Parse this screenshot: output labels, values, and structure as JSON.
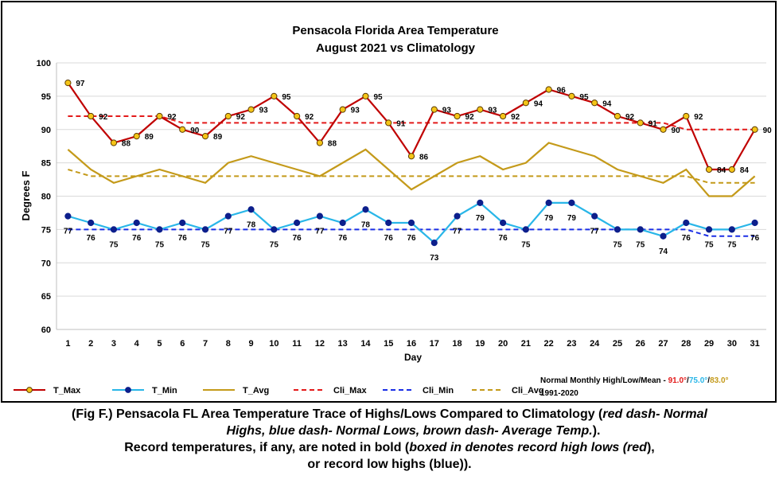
{
  "chart_data": {
    "type": "line",
    "title": "Pensacola Florida Area Temperature",
    "subtitle": "August 2021 vs Climatology",
    "xlabel": "Day",
    "ylabel": "Degrees F",
    "ylim": [
      60,
      100
    ],
    "yticks": [
      60,
      65,
      70,
      75,
      80,
      85,
      90,
      95,
      100
    ],
    "x": [
      1,
      2,
      3,
      4,
      5,
      6,
      7,
      8,
      9,
      10,
      11,
      12,
      13,
      14,
      15,
      16,
      17,
      18,
      19,
      20,
      21,
      22,
      23,
      24,
      25,
      26,
      27,
      28,
      29,
      30,
      31
    ],
    "grid": "horizontal",
    "legend_position": "bottom",
    "series": [
      {
        "name": "T_Max",
        "color": "#c00000",
        "style": "solid-marker",
        "marker_fill": "#f5c518",
        "labels": "above-right",
        "values": [
          97,
          92,
          88,
          89,
          92,
          90,
          89,
          92,
          93,
          95,
          92,
          88,
          93,
          95,
          91,
          86,
          93,
          92,
          93,
          92,
          94,
          96,
          95,
          94,
          92,
          91,
          90,
          92,
          84,
          84,
          90
        ]
      },
      {
        "name": "T_Min",
        "color": "#29b6e8",
        "style": "solid-marker",
        "marker_fill": "#0d1f8c",
        "labels": "below",
        "values": [
          77,
          76,
          75,
          76,
          75,
          76,
          75,
          77,
          78,
          75,
          76,
          77,
          76,
          78,
          76,
          76,
          73,
          77,
          79,
          76,
          75,
          79,
          79,
          77,
          75,
          75,
          74,
          76,
          75,
          75,
          76
        ]
      },
      {
        "name": "T_Avg",
        "color": "#c49a1a",
        "style": "solid",
        "values": [
          87,
          84,
          82,
          83,
          84,
          83,
          82,
          85,
          86,
          85,
          84,
          83,
          85,
          87,
          84,
          81,
          83,
          85,
          86,
          84,
          85,
          88,
          87,
          86,
          84,
          83,
          82,
          84,
          80,
          80,
          83
        ]
      },
      {
        "name": "Cli_Max",
        "color": "#e31a1a",
        "style": "dash",
        "values": [
          92,
          92,
          92,
          92,
          92,
          91,
          91,
          91,
          91,
          91,
          91,
          91,
          91,
          91,
          91,
          91,
          91,
          91,
          91,
          91,
          91,
          91,
          91,
          91,
          91,
          91,
          91,
          90,
          90,
          90,
          90
        ]
      },
      {
        "name": "Cli_Min",
        "color": "#1a2ee6",
        "style": "dash",
        "values": [
          75,
          75,
          75,
          75,
          75,
          75,
          75,
          75,
          75,
          75,
          75,
          75,
          75,
          75,
          75,
          75,
          75,
          75,
          75,
          75,
          75,
          75,
          75,
          75,
          75,
          75,
          75,
          75,
          74,
          74,
          74
        ]
      },
      {
        "name": "Cli_Avg",
        "color": "#c49a1a",
        "style": "dash",
        "values": [
          84,
          83,
          83,
          83,
          83,
          83,
          83,
          83,
          83,
          83,
          83,
          83,
          83,
          83,
          83,
          83,
          83,
          83,
          83,
          83,
          83,
          83,
          83,
          83,
          83,
          83,
          83,
          83,
          82,
          82,
          82
        ]
      }
    ],
    "note": {
      "line1_prefix": "Normal Monthly High/Low/Mean - ",
      "high": "91.0°",
      "low": "75.0°",
      "mean": "83.0°",
      "sep": "/",
      "line2": "1991-2020",
      "high_color": "#e31a1a",
      "low_color": "#29b6e8",
      "mean_color": "#c49a1a"
    }
  },
  "caption": {
    "line1_bold": "(Fig F.) Pensacola FL Area Temperature Trace of Highs/Lows Compared to Climatology (",
    "line1_italic": "red dash- Normal",
    "line2_italic": "Highs, blue dash- Normal Lows, brown dash- Average Temp.",
    "line2_end": ").",
    "line3_bold": "Record temperatures, if any, are noted in bold (",
    "line3_italic": "boxed in denotes record high lows (red",
    "line3_end": "),",
    "line4": "or record low highs (blue))."
  }
}
